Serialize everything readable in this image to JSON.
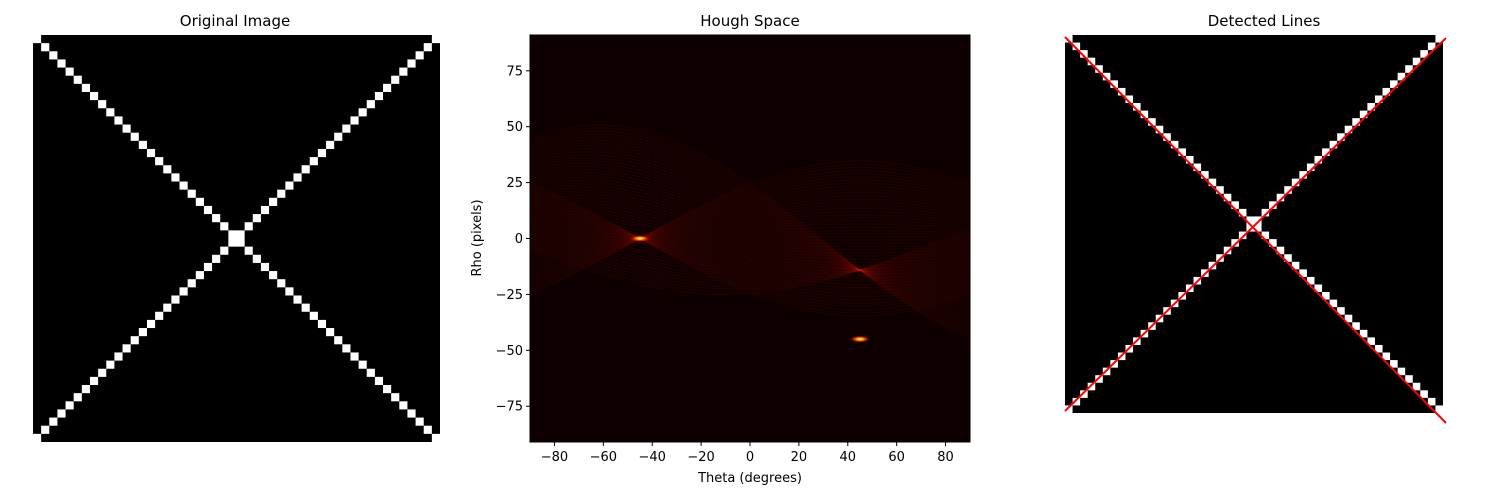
{
  "chart_data": [
    {
      "type": "image",
      "title": "Original Image",
      "axis_visible": false,
      "image_size": 50,
      "pixels_on": "two diagonals (row==col and row+col==49)",
      "colormap": "gray"
    },
    {
      "type": "heatmap",
      "title": "Hough Space",
      "xlabel": "Theta (degrees)",
      "ylabel": "Rho (pixels)",
      "xlim": [
        -90,
        90
      ],
      "ylim": [
        -91,
        91
      ],
      "xticks": [
        "−80",
        "−60",
        "−40",
        "−20",
        "0",
        "20",
        "40",
        "60",
        "80"
      ],
      "yticks": [
        "75",
        "50",
        "25",
        "0",
        "−25",
        "−50",
        "−75"
      ],
      "colormap": "hot",
      "peaks": [
        {
          "theta": -45,
          "rho": 0
        },
        {
          "theta": 45,
          "rho": -45
        }
      ]
    },
    {
      "type": "image",
      "title": "Detected Lines",
      "axis_visible": false,
      "line_color": "#ff0000",
      "lines": [
        {
          "theta": -45,
          "rho": 0
        },
        {
          "theta": 45,
          "rho": -45
        }
      ]
    }
  ]
}
